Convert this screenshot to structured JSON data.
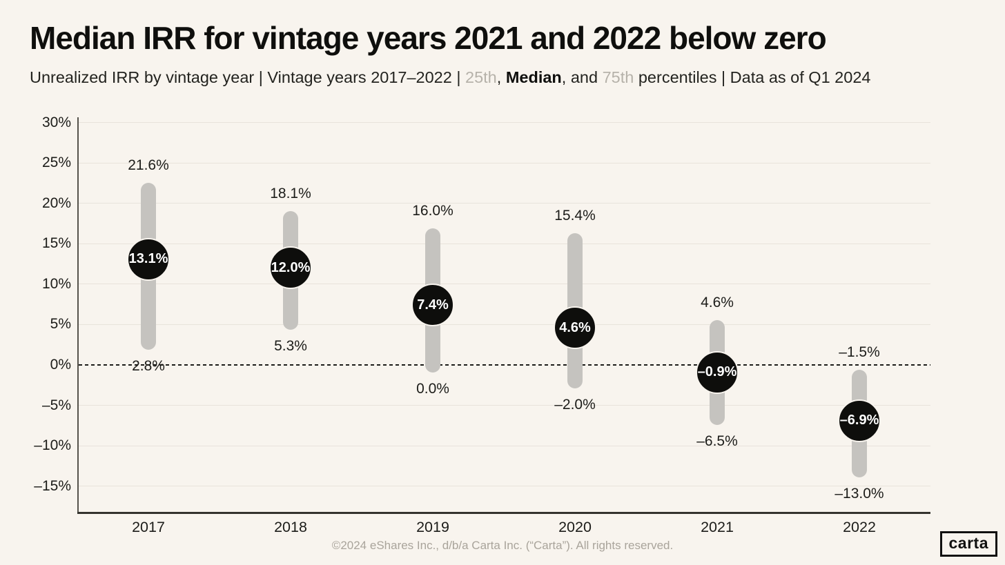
{
  "header": {
    "title": "Median IRR for vintage years 2021 and 2022 below zero",
    "subtitle": {
      "part1": "Unrealized IRR by vintage year | Vintage years 2017–2022 | ",
      "p25": "25th",
      "sep1": ", ",
      "median": "Median",
      "sep2": ", and ",
      "p75": "75th",
      "part2": " percentiles | Data as of Q1 2024"
    }
  },
  "chart_data": {
    "type": "dumbbell",
    "title": "Median IRR for vintage years 2021 and 2022 below zero",
    "subtitle": "Unrealized IRR by vintage year | Vintage years 2017–2022 | 25th, Median, and 75th percentiles | Data as of Q1 2024",
    "categories": [
      "2017",
      "2018",
      "2019",
      "2020",
      "2021",
      "2022"
    ],
    "series": [
      {
        "name": "75th percentile",
        "values": [
          21.6,
          18.1,
          16.0,
          15.4,
          4.6,
          -1.5
        ],
        "labels": [
          "21.6%",
          "18.1%",
          "16.0%",
          "15.4%",
          "4.6%",
          "–1.5%"
        ]
      },
      {
        "name": "Median",
        "values": [
          13.1,
          12.0,
          7.4,
          4.6,
          -0.9,
          -6.9
        ],
        "labels": [
          "13.1%",
          "12.0%",
          "7.4%",
          "4.6%",
          "–0.9%",
          "–6.9%"
        ]
      },
      {
        "name": "25th percentile",
        "values": [
          2.8,
          5.3,
          0.0,
          -2.0,
          -6.5,
          -13.0
        ],
        "labels": [
          "2.8%",
          "5.3%",
          "0.0%",
          "–2.0%",
          "–6.5%",
          "–13.0%"
        ]
      }
    ],
    "xlabel": "",
    "ylabel": "",
    "ylim": [
      -18.5,
      30.7
    ],
    "y_axis": {
      "grid": true,
      "ticks": [
        {
          "value": 30,
          "label": "30%"
        },
        {
          "value": 25,
          "label": "25%"
        },
        {
          "value": 20,
          "label": "20%"
        },
        {
          "value": 15,
          "label": "15%"
        },
        {
          "value": 10,
          "label": "10%"
        },
        {
          "value": 5,
          "label": "5%"
        },
        {
          "value": 0,
          "label": "0%"
        },
        {
          "value": -5,
          "label": "–5%"
        },
        {
          "value": -10,
          "label": "–10%"
        },
        {
          "value": -15,
          "label": "–15%"
        }
      ]
    },
    "zero_line": {
      "value": 0,
      "style": "dashed"
    },
    "legend_position": "none",
    "colors": {
      "background": "#f8f4ee",
      "range_bar": "#c5c3bf",
      "median_bubble": "#0e0e0c",
      "bubble_text": "#ffffff",
      "muted_text": "#b6b2aa",
      "gridline": "#e8e3db"
    }
  },
  "footer": {
    "copyright": "©2024 eShares Inc., d/b/a Carta Inc. (“Carta”). All rights reserved."
  },
  "logo": {
    "text": "carta"
  }
}
